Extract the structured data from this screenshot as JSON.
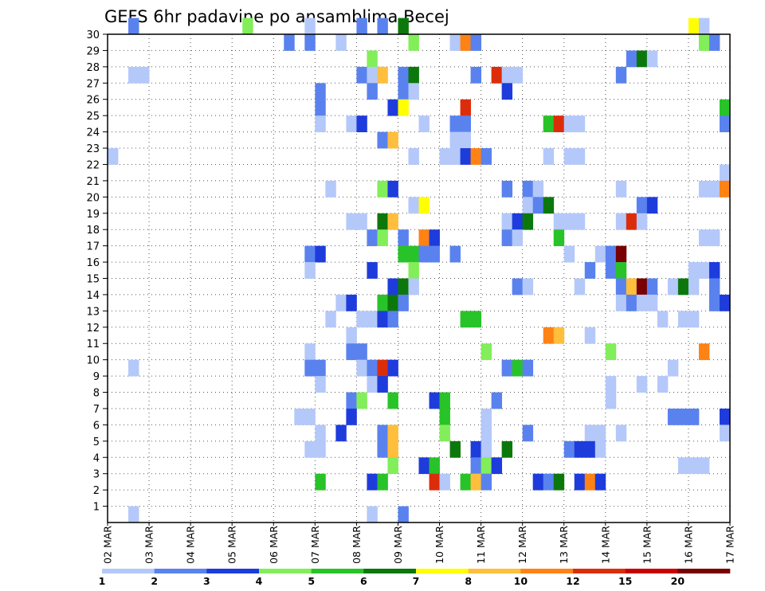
{
  "chart_data": {
    "type": "heatmap",
    "title": "GEFS 6hr padavine po ansamblima Becej",
    "x_ticks": [
      "02 MAR",
      "03 MAR",
      "04 MAR",
      "05 MAR",
      "06 MAR",
      "07 MAR",
      "08 MAR",
      "09 MAR",
      "10 MAR",
      "11 MAR",
      "12 MAR",
      "13 MAR",
      "14 MAR",
      "15 MAR",
      "16 MAR",
      "17 MAR"
    ],
    "x_range": [
      "02 MAR 00",
      "17 MAR 00"
    ],
    "x_step_hours": 6,
    "y_ticks": [
      1,
      2,
      3,
      4,
      5,
      6,
      7,
      8,
      9,
      10,
      11,
      12,
      13,
      14,
      15,
      16,
      17,
      18,
      19,
      20,
      21,
      22,
      23,
      24,
      25,
      26,
      27,
      28,
      29,
      30
    ],
    "y_range": [
      0,
      30
    ],
    "grid": "dotted",
    "colorbar": {
      "labels": [
        "1",
        "2",
        "3",
        "4",
        "5",
        "6",
        "7",
        "8",
        "10",
        "12",
        "15",
        "20"
      ],
      "colors": [
        "#b4c8fa",
        "#5a82ee",
        "#1e3cdc",
        "#82ee5a",
        "#28c328",
        "#0c780c",
        "#ffff00",
        "#ffbe3c",
        "#ff8214",
        "#dc2d0a",
        "#c80000",
        "#780000"
      ]
    },
    "cells": [
      [
        2,
        1,
        30
      ],
      [
        13,
        3,
        30
      ],
      [
        19,
        0,
        30
      ],
      [
        24,
        1,
        30
      ],
      [
        26,
        1,
        30
      ],
      [
        28,
        5,
        30
      ],
      [
        56,
        6,
        30
      ],
      [
        57,
        0,
        30
      ],
      [
        17,
        1,
        29
      ],
      [
        19,
        1,
        29
      ],
      [
        22,
        0,
        29
      ],
      [
        29,
        3,
        29
      ],
      [
        33,
        0,
        29
      ],
      [
        34,
        8,
        29
      ],
      [
        35,
        1,
        29
      ],
      [
        57,
        3,
        29
      ],
      [
        58,
        1,
        29
      ],
      [
        25,
        3,
        28
      ],
      [
        50,
        1,
        28
      ],
      [
        51,
        5,
        28
      ],
      [
        52,
        0,
        28
      ],
      [
        2,
        0,
        27
      ],
      [
        3,
        0,
        27
      ],
      [
        24,
        1,
        27
      ],
      [
        25,
        0,
        27
      ],
      [
        26,
        7,
        27
      ],
      [
        28,
        1,
        27
      ],
      [
        29,
        5,
        27
      ],
      [
        35,
        1,
        27
      ],
      [
        37,
        9,
        27
      ],
      [
        38,
        0,
        27
      ],
      [
        39,
        0,
        27
      ],
      [
        49,
        1,
        27
      ],
      [
        20,
        1,
        26
      ],
      [
        25,
        1,
        26
      ],
      [
        28,
        1,
        26
      ],
      [
        29,
        0,
        26
      ],
      [
        38,
        2,
        26
      ],
      [
        20,
        1,
        25
      ],
      [
        27,
        2,
        25
      ],
      [
        28,
        6,
        25
      ],
      [
        34,
        9,
        25
      ],
      [
        59,
        4,
        25
      ],
      [
        20,
        0,
        24
      ],
      [
        23,
        0,
        24
      ],
      [
        24,
        2,
        24
      ],
      [
        30,
        0,
        24
      ],
      [
        33,
        1,
        24
      ],
      [
        34,
        1,
        24
      ],
      [
        42,
        4,
        24
      ],
      [
        43,
        9,
        24
      ],
      [
        44,
        0,
        24
      ],
      [
        45,
        0,
        24
      ],
      [
        59,
        1,
        24
      ],
      [
        26,
        1,
        23
      ],
      [
        27,
        7,
        23
      ],
      [
        33,
        0,
        23
      ],
      [
        34,
        0,
        23
      ],
      [
        0,
        0,
        22
      ],
      [
        29,
        0,
        22
      ],
      [
        32,
        0,
        22
      ],
      [
        33,
        0,
        22
      ],
      [
        34,
        2,
        22
      ],
      [
        35,
        8,
        22
      ],
      [
        36,
        1,
        22
      ],
      [
        42,
        0,
        22
      ],
      [
        44,
        0,
        22
      ],
      [
        45,
        0,
        22
      ],
      [
        59,
        0,
        21
      ],
      [
        21,
        0,
        20
      ],
      [
        26,
        3,
        20
      ],
      [
        27,
        2,
        20
      ],
      [
        38,
        1,
        20
      ],
      [
        40,
        1,
        20
      ],
      [
        41,
        0,
        20
      ],
      [
        49,
        0,
        20
      ],
      [
        57,
        0,
        20
      ],
      [
        58,
        0,
        20
      ],
      [
        59,
        8,
        20
      ],
      [
        29,
        0,
        19
      ],
      [
        30,
        6,
        19
      ],
      [
        40,
        0,
        19
      ],
      [
        41,
        1,
        19
      ],
      [
        42,
        5,
        19
      ],
      [
        51,
        1,
        19
      ],
      [
        52,
        2,
        19
      ],
      [
        23,
        0,
        18
      ],
      [
        24,
        0,
        18
      ],
      [
        26,
        5,
        18
      ],
      [
        27,
        7,
        18
      ],
      [
        38,
        0,
        18
      ],
      [
        39,
        2,
        18
      ],
      [
        40,
        5,
        18
      ],
      [
        43,
        0,
        18
      ],
      [
        44,
        0,
        18
      ],
      [
        45,
        0,
        18
      ],
      [
        49,
        0,
        18
      ],
      [
        50,
        9,
        18
      ],
      [
        51,
        0,
        18
      ],
      [
        25,
        1,
        17
      ],
      [
        26,
        3,
        17
      ],
      [
        28,
        1,
        17
      ],
      [
        30,
        8,
        17
      ],
      [
        31,
        2,
        17
      ],
      [
        38,
        1,
        17
      ],
      [
        39,
        0,
        17
      ],
      [
        43,
        4,
        17
      ],
      [
        57,
        0,
        17
      ],
      [
        58,
        0,
        17
      ],
      [
        19,
        1,
        16
      ],
      [
        20,
        2,
        16
      ],
      [
        28,
        4,
        16
      ],
      [
        29,
        4,
        16
      ],
      [
        30,
        1,
        16
      ],
      [
        31,
        1,
        16
      ],
      [
        33,
        1,
        16
      ],
      [
        44,
        0,
        16
      ],
      [
        47,
        0,
        16
      ],
      [
        48,
        1,
        16
      ],
      [
        49,
        11,
        16
      ],
      [
        19,
        0,
        15
      ],
      [
        25,
        2,
        15
      ],
      [
        29,
        3,
        15
      ],
      [
        46,
        1,
        15
      ],
      [
        48,
        1,
        15
      ],
      [
        49,
        4,
        15
      ],
      [
        56,
        0,
        15
      ],
      [
        57,
        0,
        15
      ],
      [
        58,
        2,
        15
      ],
      [
        27,
        2,
        14
      ],
      [
        28,
        5,
        14
      ],
      [
        29,
        0,
        14
      ],
      [
        39,
        1,
        14
      ],
      [
        40,
        0,
        14
      ],
      [
        45,
        0,
        14
      ],
      [
        49,
        1,
        14
      ],
      [
        50,
        7,
        14
      ],
      [
        51,
        11,
        14
      ],
      [
        52,
        1,
        14
      ],
      [
        54,
        0,
        14
      ],
      [
        55,
        5,
        14
      ],
      [
        56,
        0,
        14
      ],
      [
        58,
        1,
        14
      ],
      [
        22,
        0,
        13
      ],
      [
        23,
        2,
        13
      ],
      [
        26,
        4,
        13
      ],
      [
        27,
        5,
        13
      ],
      [
        28,
        1,
        13
      ],
      [
        49,
        0,
        13
      ],
      [
        50,
        1,
        13
      ],
      [
        51,
        0,
        13
      ],
      [
        52,
        0,
        13
      ],
      [
        58,
        1,
        13
      ],
      [
        59,
        2,
        13
      ],
      [
        21,
        0,
        12
      ],
      [
        24,
        0,
        12
      ],
      [
        25,
        0,
        12
      ],
      [
        26,
        2,
        12
      ],
      [
        27,
        1,
        12
      ],
      [
        34,
        4,
        12
      ],
      [
        35,
        4,
        12
      ],
      [
        53,
        0,
        12
      ],
      [
        55,
        0,
        12
      ],
      [
        56,
        0,
        12
      ],
      [
        23,
        0,
        11
      ],
      [
        42,
        8,
        11
      ],
      [
        43,
        7,
        11
      ],
      [
        46,
        0,
        11
      ],
      [
        19,
        0,
        10
      ],
      [
        23,
        1,
        10
      ],
      [
        24,
        1,
        10
      ],
      [
        36,
        3,
        10
      ],
      [
        48,
        3,
        10
      ],
      [
        57,
        8,
        10
      ],
      [
        2,
        0,
        9
      ],
      [
        19,
        1,
        9
      ],
      [
        20,
        1,
        9
      ],
      [
        24,
        0,
        9
      ],
      [
        25,
        1,
        9
      ],
      [
        26,
        9,
        9
      ],
      [
        27,
        2,
        9
      ],
      [
        38,
        1,
        9
      ],
      [
        39,
        4,
        9
      ],
      [
        40,
        1,
        9
      ],
      [
        54,
        0,
        9
      ],
      [
        20,
        0,
        8
      ],
      [
        25,
        0,
        8
      ],
      [
        26,
        2,
        8
      ],
      [
        48,
        0,
        8
      ],
      [
        51,
        0,
        8
      ],
      [
        53,
        0,
        8
      ],
      [
        23,
        1,
        7
      ],
      [
        24,
        3,
        7
      ],
      [
        27,
        4,
        7
      ],
      [
        31,
        2,
        7
      ],
      [
        32,
        4,
        7
      ],
      [
        37,
        1,
        7
      ],
      [
        48,
        0,
        7
      ],
      [
        18,
        0,
        6
      ],
      [
        19,
        0,
        6
      ],
      [
        23,
        2,
        6
      ],
      [
        32,
        4,
        6
      ],
      [
        36,
        0,
        6
      ],
      [
        54,
        1,
        6
      ],
      [
        55,
        1,
        6
      ],
      [
        56,
        1,
        6
      ],
      [
        59,
        2,
        6
      ],
      [
        20,
        0,
        5
      ],
      [
        22,
        2,
        5
      ],
      [
        26,
        1,
        5
      ],
      [
        27,
        7,
        5
      ],
      [
        32,
        3,
        5
      ],
      [
        36,
        0,
        5
      ],
      [
        40,
        1,
        5
      ],
      [
        46,
        0,
        5
      ],
      [
        47,
        0,
        5
      ],
      [
        49,
        0,
        5
      ],
      [
        59,
        0,
        5
      ],
      [
        19,
        0,
        4
      ],
      [
        20,
        0,
        4
      ],
      [
        26,
        1,
        4
      ],
      [
        27,
        7,
        4
      ],
      [
        33,
        5,
        4
      ],
      [
        35,
        2,
        4
      ],
      [
        36,
        0,
        4
      ],
      [
        38,
        5,
        4
      ],
      [
        44,
        1,
        4
      ],
      [
        45,
        2,
        4
      ],
      [
        46,
        2,
        4
      ],
      [
        47,
        0,
        4
      ],
      [
        27,
        3,
        3
      ],
      [
        30,
        2,
        3
      ],
      [
        31,
        4,
        3
      ],
      [
        35,
        1,
        3
      ],
      [
        36,
        3,
        3
      ],
      [
        37,
        2,
        3
      ],
      [
        55,
        0,
        3
      ],
      [
        56,
        0,
        3
      ],
      [
        57,
        0,
        3
      ],
      [
        20,
        4,
        2
      ],
      [
        25,
        2,
        2
      ],
      [
        26,
        4,
        2
      ],
      [
        31,
        9,
        2
      ],
      [
        32,
        0,
        2
      ],
      [
        34,
        4,
        2
      ],
      [
        35,
        7,
        2
      ],
      [
        36,
        1,
        2
      ],
      [
        41,
        2,
        2
      ],
      [
        42,
        1,
        2
      ],
      [
        43,
        5,
        2
      ],
      [
        45,
        2,
        2
      ],
      [
        46,
        8,
        2
      ],
      [
        47,
        2,
        2
      ],
      [
        2,
        0,
        0
      ],
      [
        25,
        0,
        0
      ],
      [
        28,
        1,
        0
      ]
    ]
  }
}
